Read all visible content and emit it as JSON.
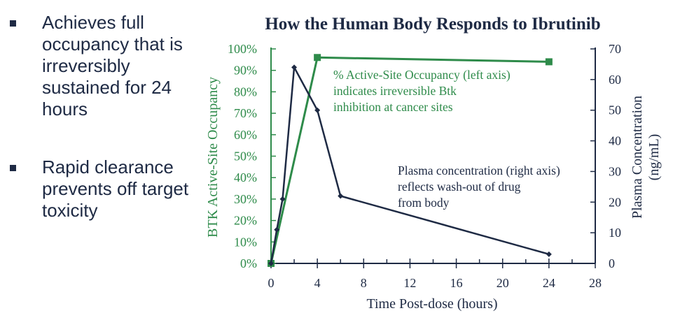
{
  "bullets": [
    {
      "text": "Achieves full occupancy that is irreversibly sustained for 24 hours"
    },
    {
      "text": "Rapid clearance prevents off target toxicity"
    }
  ],
  "colors": {
    "occupancy": "#2e8b4a",
    "plasma": "#1e2a44",
    "text": "#1e2a44"
  },
  "chart_data": {
    "type": "line",
    "title": "How the Human Body Responds to Ibrutinib",
    "xlabel": "Time Post-dose (hours)",
    "ylabel_left": "BTK Active-Site Occupancy",
    "ylabel_right": "Plasma Concentration (ng/mL)",
    "xlim": [
      0,
      28
    ],
    "xticks": [
      "0",
      "4",
      "8",
      "12",
      "16",
      "20",
      "24",
      "28"
    ],
    "ylim_left": [
      0,
      100
    ],
    "yticks_left": [
      "0%",
      "10%",
      "20%",
      "30%",
      "40%",
      "50%",
      "60%",
      "70%",
      "80%",
      "90%",
      "100%"
    ],
    "ylim_right": [
      0,
      70
    ],
    "yticks_right": [
      "0",
      "10",
      "20",
      "30",
      "40",
      "50",
      "60",
      "70"
    ],
    "series": [
      {
        "name": "% Active-Site Occupancy",
        "axis": "left",
        "marker": "square",
        "x": [
          0,
          4,
          24
        ],
        "y": [
          0,
          96,
          94
        ]
      },
      {
        "name": "Plasma concentration",
        "axis": "right",
        "marker": "diamond",
        "x": [
          0,
          0.5,
          1,
          2,
          4,
          6,
          24
        ],
        "y": [
          0,
          11,
          21,
          64,
          50,
          22,
          3
        ]
      }
    ],
    "annotations": [
      {
        "lines": [
          "% Active-Site Occupancy (left axis)",
          "indicates irreversible Btk",
          "inhibition at cancer sites"
        ]
      },
      {
        "lines": [
          "Plasma concentration (right axis)",
          "reflects wash-out of drug",
          "from body"
        ]
      }
    ]
  }
}
